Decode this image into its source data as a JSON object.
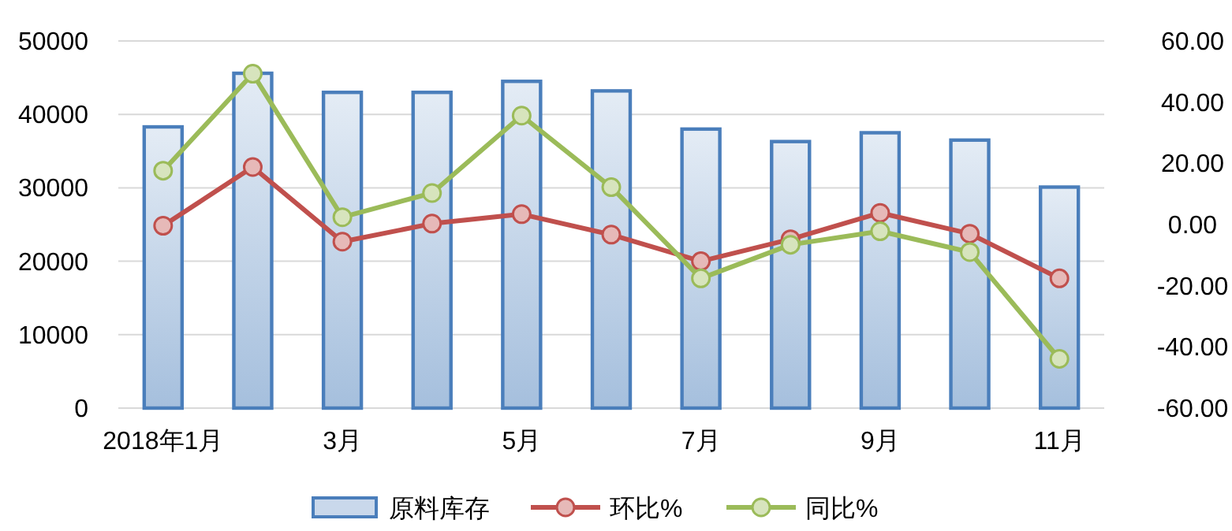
{
  "chart_data": {
    "type": "bar",
    "categories": [
      "2018年1月",
      null,
      "3月",
      null,
      "5月",
      null,
      "7月",
      null,
      "9月",
      null,
      "11月"
    ],
    "series": [
      {
        "name": "原料库存",
        "color": "#4a7ebb",
        "values": [
          38300,
          45600,
          43000,
          43000,
          44500,
          43200,
          38000,
          36300,
          37500,
          36500,
          30100
        ]
      },
      {
        "name": "环比%",
        "type": "line",
        "axis": "y2",
        "color": "#c0504d",
        "values": [
          -0.4,
          18.8,
          -5.6,
          0.3,
          3.4,
          -3.3,
          -12.0,
          -4.8,
          3.8,
          -3.0,
          -17.6
        ]
      },
      {
        "name": "同比%",
        "type": "line",
        "axis": "y2",
        "color": "#9bbb59",
        "values": [
          17.6,
          49.3,
          2.4,
          10.3,
          35.6,
          12.2,
          -17.6,
          -6.6,
          -2.2,
          -9.0,
          -43.9
        ]
      }
    ],
    "ylim": [
      0,
      50000
    ],
    "yticks": [
      0,
      10000,
      20000,
      30000,
      40000,
      50000
    ],
    "y2lim": [
      -60,
      60
    ],
    "y2ticks": [
      {
        "value": -60,
        "label": "-60.00"
      },
      {
        "value": -40,
        "label": "-40.00"
      },
      {
        "value": -20,
        "label": "-20.00"
      },
      {
        "value": 0,
        "label": "0.00"
      },
      {
        "value": 20,
        "label": "20.00"
      },
      {
        "value": 40,
        "label": "40.00"
      },
      {
        "value": 60,
        "label": "60.00"
      }
    ],
    "grid": "y",
    "legend": "bottom",
    "marker": "circle",
    "line_style": "solid"
  }
}
